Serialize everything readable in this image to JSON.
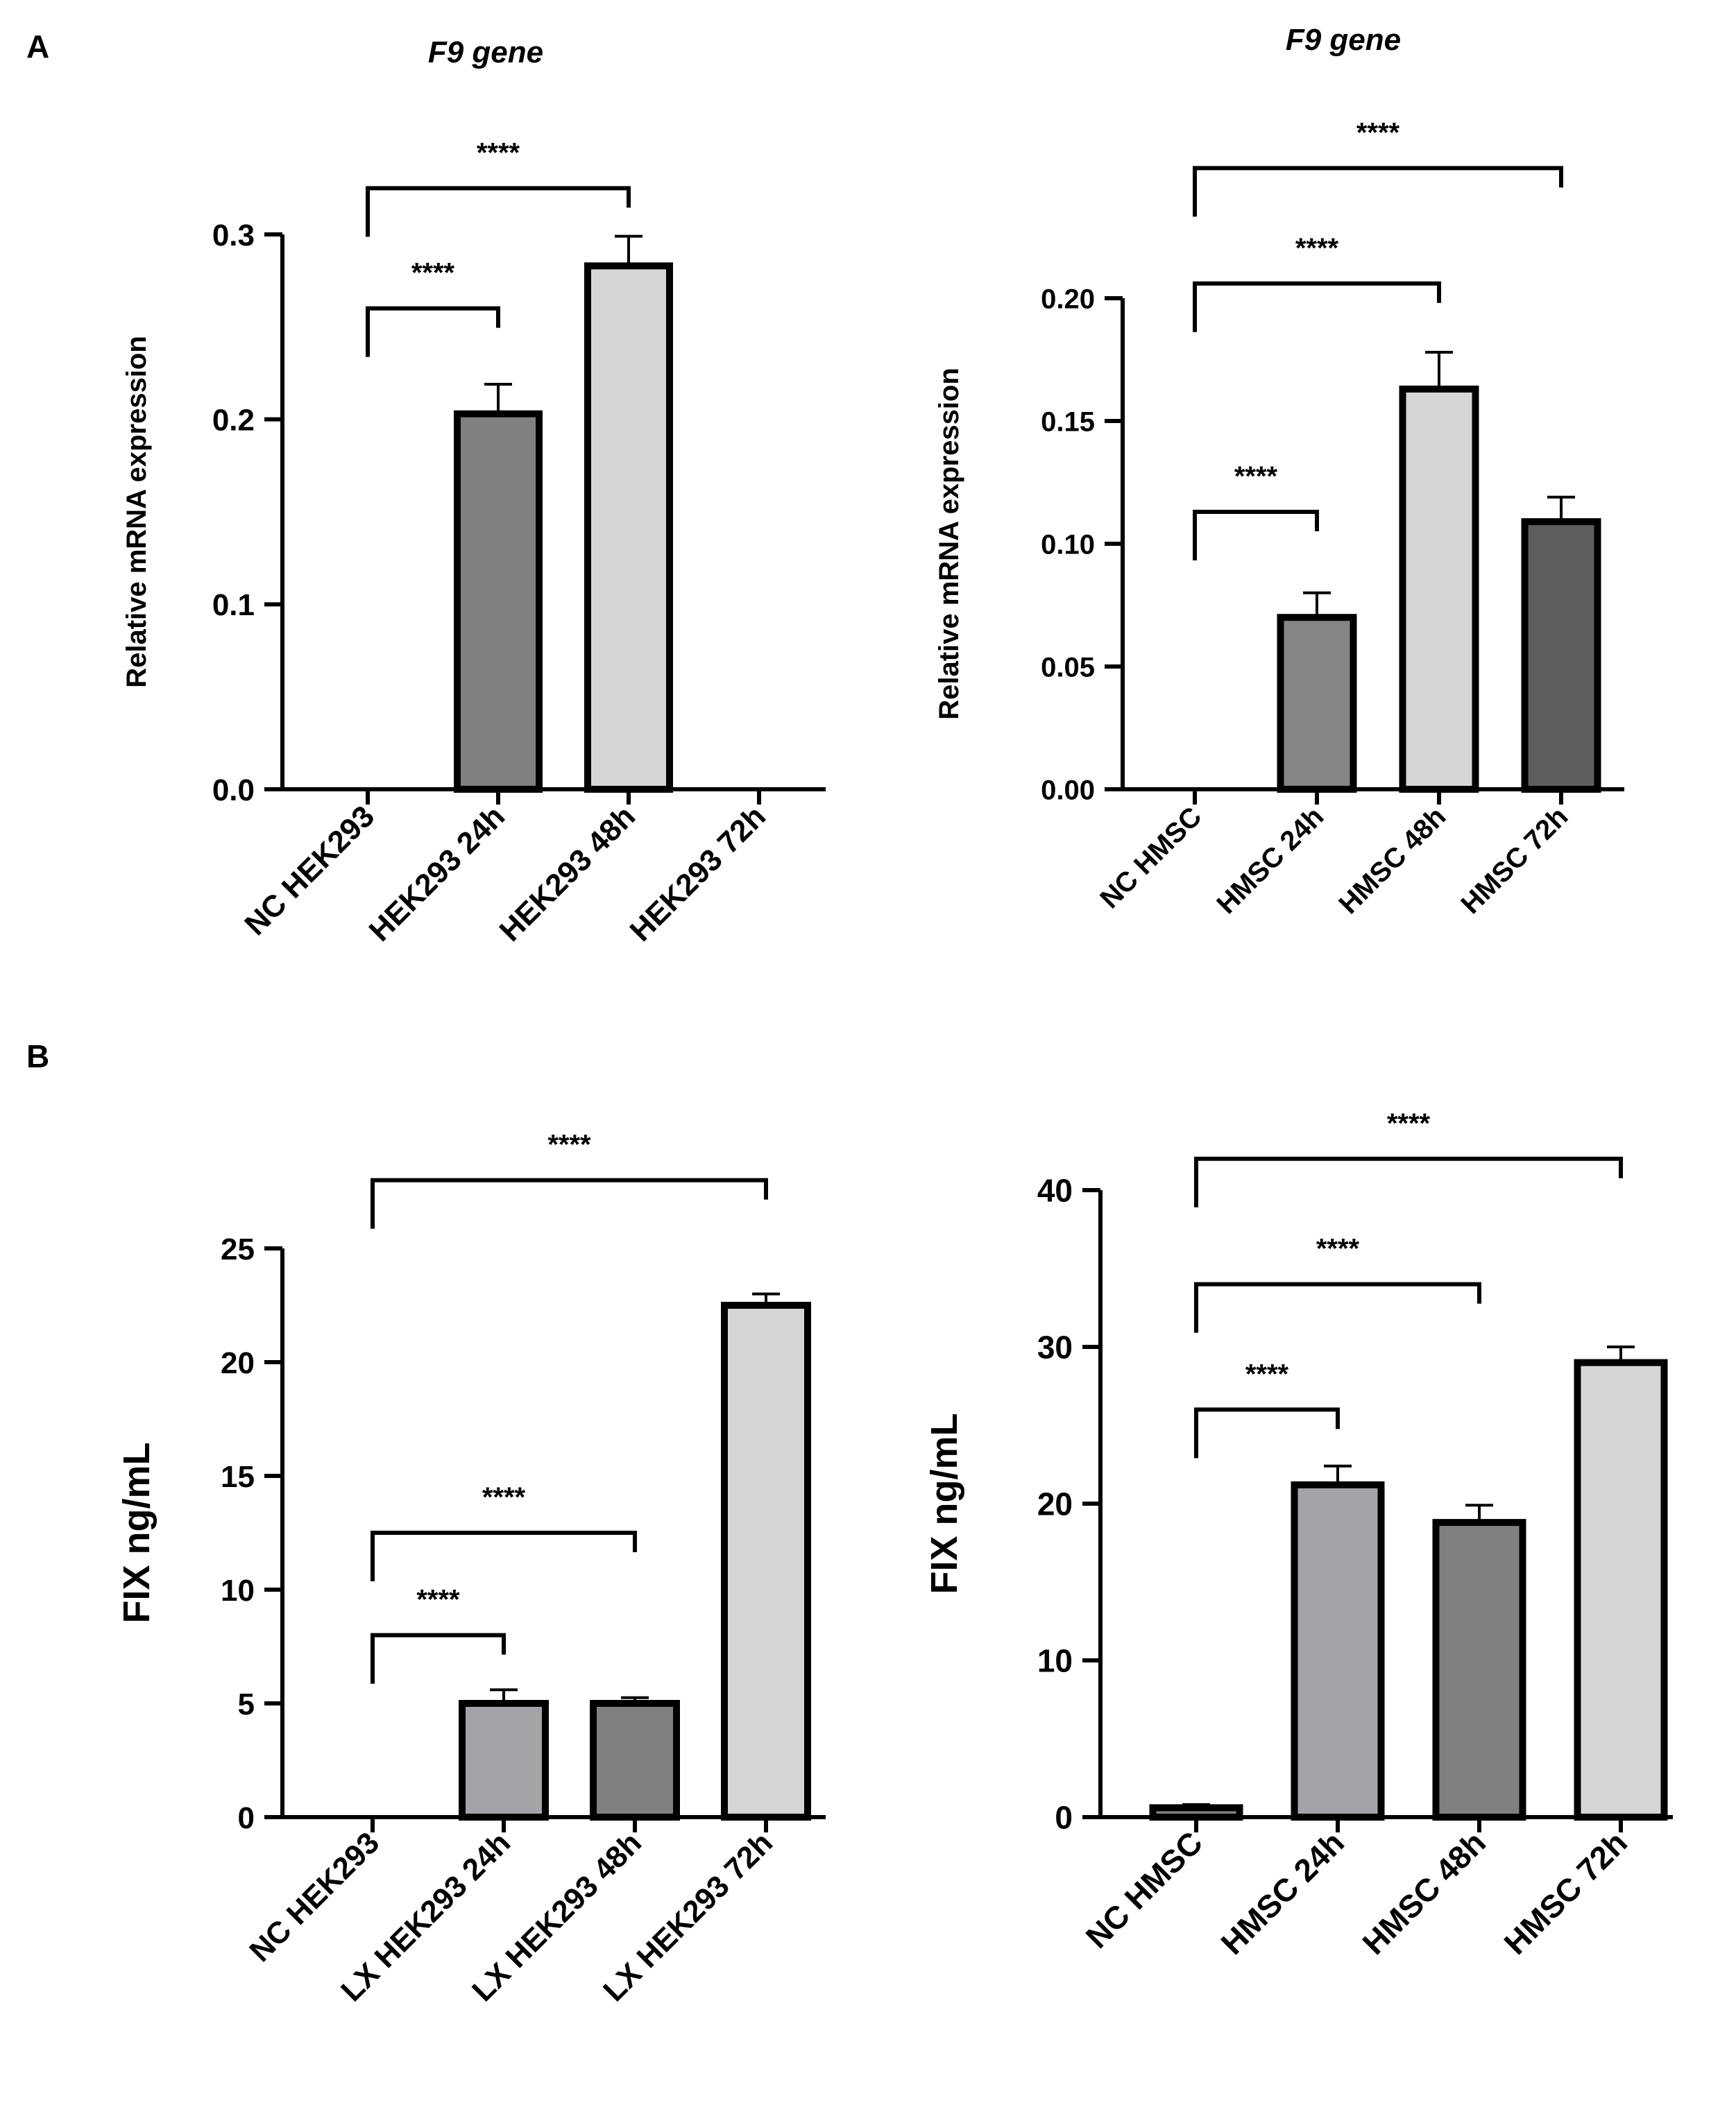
{
  "panels": {
    "a": "A",
    "b": "B"
  },
  "chart_data": [
    {
      "type": "bar",
      "panel": "A",
      "title": "F9 gene",
      "xlabel": "",
      "ylabel": "Relative mRNA expression",
      "categories": [
        "NC HEK293",
        "HEK293 24h",
        "HEK293 48h",
        "HEK293 72h"
      ],
      "values": [
        0,
        0.203,
        0.283,
        0
      ],
      "errors": [
        0,
        0.016,
        0.016,
        0
      ],
      "bar_colors": [
        "#ffffff",
        "#808080",
        "#d6d6d6",
        "#ffffff"
      ],
      "ylim": [
        0,
        0.3
      ],
      "yticks": [
        0,
        0.1,
        0.2,
        0.3
      ],
      "ytick_labels": [
        "0.0",
        "0.1",
        "0.2",
        "0.3"
      ],
      "brackets": [
        {
          "from": 0,
          "to": 1,
          "label": "****",
          "level": 0.26
        },
        {
          "from": 0,
          "to": 2,
          "label": "****",
          "level": 0.325
        }
      ]
    },
    {
      "type": "bar",
      "panel": "A",
      "title": "F9 gene",
      "xlabel": "",
      "ylabel": "Relative mRNA expression",
      "categories": [
        "NC HMSC",
        "HMSC 24h",
        "HMSC 48h",
        "HMSC 72h"
      ],
      "values": [
        0,
        0.07,
        0.163,
        0.109
      ],
      "errors": [
        0,
        0.01,
        0.015,
        0.01
      ],
      "bar_colors": [
        "#ffffff",
        "#858585",
        "#d6d6d6",
        "#5e5e5e"
      ],
      "ylim": [
        0,
        0.2
      ],
      "yticks": [
        0,
        0.05,
        0.1,
        0.15,
        0.2
      ],
      "ytick_labels": [
        "0.00",
        "0.05",
        "0.10",
        "0.15",
        "0.20"
      ],
      "brackets": [
        {
          "from": 0,
          "to": 1,
          "label": "****",
          "level": 0.113
        },
        {
          "from": 0,
          "to": 2,
          "label": "****",
          "level": 0.206
        },
        {
          "from": 0,
          "to": 3,
          "label": "****",
          "level": 0.253
        }
      ]
    },
    {
      "type": "bar",
      "panel": "B",
      "title": "",
      "xlabel": "",
      "ylabel": "FIX ng/mL",
      "categories": [
        "NC HEK293",
        "LX HEK293 24h",
        "LX HEK293 48h",
        "LX HEK293 72h"
      ],
      "values": [
        0,
        5.0,
        5.0,
        22.5
      ],
      "errors": [
        0,
        0.6,
        0.25,
        0.5
      ],
      "bar_colors": [
        "#ffffff",
        "#a3a3a8",
        "#808080",
        "#d6d6d6"
      ],
      "ylim": [
        0,
        25
      ],
      "yticks": [
        0,
        5,
        10,
        15,
        20,
        25
      ],
      "ytick_labels": [
        "0",
        "5",
        "10",
        "15",
        "20",
        "25"
      ],
      "brackets": [
        {
          "from": 0,
          "to": 1,
          "label": "****",
          "level": 8.0
        },
        {
          "from": 0,
          "to": 2,
          "label": "****",
          "level": 12.5
        },
        {
          "from": 0,
          "to": 3,
          "label": "****",
          "level": 28.0
        }
      ]
    },
    {
      "type": "bar",
      "panel": "B",
      "title": "",
      "xlabel": "",
      "ylabel": "FIX ng/mL",
      "categories": [
        "NC HMSC",
        "HMSC 24h",
        "HMSC 48h",
        "HMSC 72h"
      ],
      "values": [
        0.6,
        21.2,
        18.8,
        29.0
      ],
      "errors": [
        0.2,
        1.2,
        1.1,
        1.0
      ],
      "bar_colors": [
        "#808080",
        "#a3a3a8",
        "#808080",
        "#d6d6d6"
      ],
      "ylim": [
        0,
        40
      ],
      "yticks": [
        0,
        10,
        20,
        30,
        40
      ],
      "ytick_labels": [
        "0",
        "10",
        "20",
        "30",
        "40"
      ],
      "brackets": [
        {
          "from": 0,
          "to": 1,
          "label": "****",
          "level": 26.0
        },
        {
          "from": 0,
          "to": 2,
          "label": "****",
          "level": 34.0
        },
        {
          "from": 0,
          "to": 3,
          "label": "****",
          "level": 42.0
        }
      ]
    }
  ]
}
